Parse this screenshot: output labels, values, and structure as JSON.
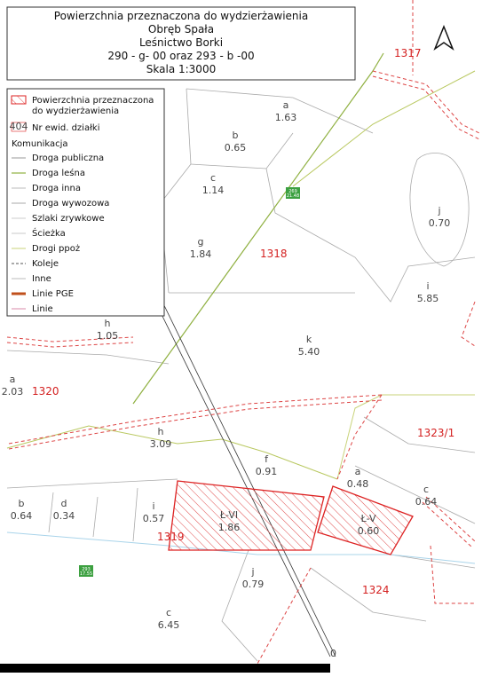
{
  "header": {
    "title": "Powierzchnia przeznaczona do wydzierżawienia",
    "lines": [
      "Obręb Spała",
      "Leśnictwo Borki",
      "290 - g- 00 oraz 293 - b -00",
      "Skala 1:3000"
    ]
  },
  "legend": {
    "area_line1": "Powierzchnia przeznaczona",
    "area_line2": "do wydzierżawienia",
    "parcel_code": "404",
    "parcel_label": "Nr ewid. działki",
    "group": "Komunikacja",
    "items": [
      "Droga publiczna",
      "Droga leśna",
      "Droga inna",
      "Droga wywozowa",
      "Szlaki zrywkowe",
      "Ścieżka",
      "Drogi ppoż",
      "Koleje",
      "Inne",
      "Linie PGE",
      "Linie"
    ]
  },
  "map": {
    "parcels": [
      {
        "letter": "a",
        "area": "1.63"
      },
      {
        "letter": "b",
        "area": "0.65"
      },
      {
        "letter": "c",
        "area": "1.14"
      },
      {
        "letter": "j",
        "area": "0.70"
      },
      {
        "letter": "g",
        "area": "1.84"
      },
      {
        "letter": "i",
        "area": "5.85"
      },
      {
        "letter": "h",
        "area": "1.05"
      },
      {
        "letter": "k",
        "area": "5.40"
      },
      {
        "letter": "a",
        "area": "2.03"
      },
      {
        "letter": "h",
        "area": "3.09"
      },
      {
        "letter": "f",
        "area": "0.91"
      },
      {
        "letter": "a",
        "area": "0.48"
      },
      {
        "letter": "c",
        "area": "0.64"
      },
      {
        "letter": "b",
        "area": "0.64"
      },
      {
        "letter": "d",
        "area": "0.34"
      },
      {
        "letter": "i",
        "area": "0.57"
      },
      {
        "letter": "Ł-VI",
        "area": "1.86"
      },
      {
        "letter": "Ł-V",
        "area": "0.60"
      },
      {
        "letter": "j",
        "area": "0.79"
      },
      {
        "letter": "c",
        "area": "6.45"
      }
    ],
    "compartments": [
      "1317",
      "1318",
      "1320",
      "1323/1",
      "1319",
      "1324"
    ],
    "markers": [
      {
        "top": "269",
        "bottom": "21.48"
      },
      {
        "top": "293",
        "bottom": "17.55"
      }
    ],
    "scale_zero": "0"
  }
}
